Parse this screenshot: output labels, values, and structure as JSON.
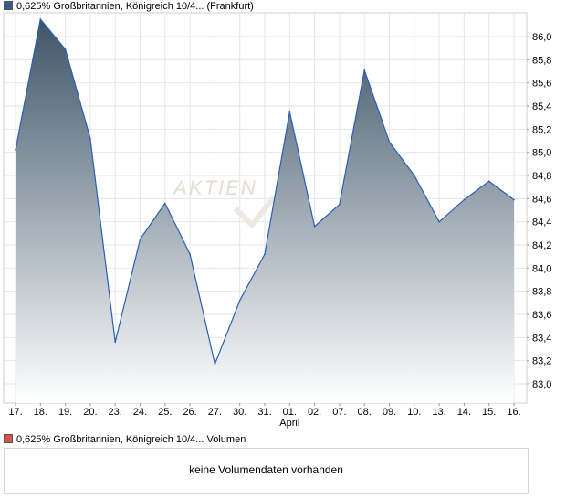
{
  "price_legend": {
    "label": "0,625% Großbritannien, Königreich 10/4... (Frankfurt)",
    "swatch_color": "#3a5a8c"
  },
  "volume_legend": {
    "label": "0,625% Großbritannien, Königreich 10/4... Volumen",
    "swatch_color": "#d9534f"
  },
  "volume_panel": {
    "message": "keine Volumendaten vorhanden"
  },
  "watermark": "AKTIEN",
  "chart_data": {
    "type": "area",
    "title": "0,625% Großbritannien, Königreich 10/4... (Frankfurt)",
    "x": [
      "17.",
      "18.",
      "19.",
      "20.",
      "23.",
      "24.",
      "25.",
      "26.",
      "27.",
      "30.",
      "31.",
      "01.",
      "02.",
      "07.",
      "08.",
      "09.",
      "10.",
      "13.",
      "14.",
      "15.",
      "16."
    ],
    "x_sublabels": [
      {
        "index": 11,
        "label": "April"
      }
    ],
    "series": [
      {
        "values": [
          85.02,
          86.15,
          85.89,
          85.12,
          83.36,
          84.25,
          84.56,
          84.12,
          83.17,
          83.72,
          84.12,
          85.35,
          84.36,
          84.55,
          85.71,
          85.09,
          84.8,
          84.4,
          84.59,
          84.75,
          84.59
        ]
      }
    ],
    "yticks": [
      "83,0",
      "83,2",
      "83,4",
      "83,6",
      "83,8",
      "84,0",
      "84,2",
      "84,4",
      "84,6",
      "84,8",
      "85,0",
      "85,2",
      "85,4",
      "85,6",
      "85,8",
      "86,0"
    ],
    "ylim": [
      82.9,
      86.2
    ],
    "grid": true,
    "line_color": "#2b5fb3",
    "fill_top_color": "#3e5568",
    "fill_bottom_color": "#ffffff"
  }
}
